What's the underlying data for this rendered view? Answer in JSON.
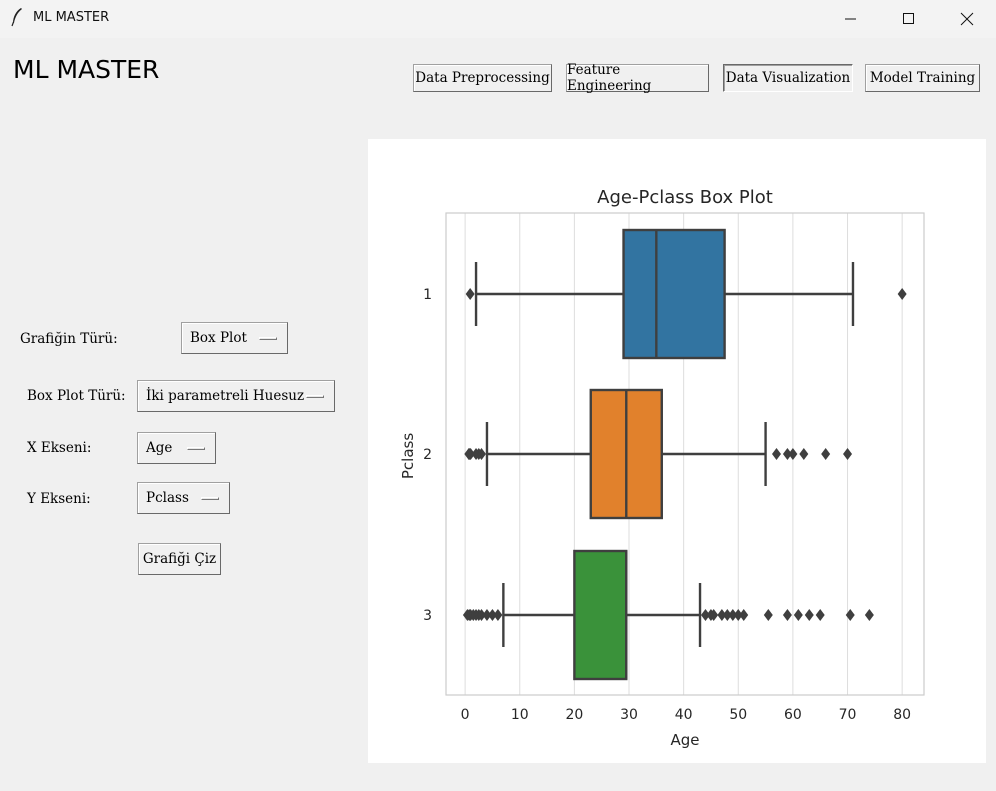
{
  "window": {
    "title": "ML MASTER"
  },
  "app": {
    "title": "ML MASTER"
  },
  "nav": {
    "data_preprocessing": "Data Preprocessing",
    "feature_engineering": "Feature Engineering",
    "data_visualization": "Data Visualization",
    "model_training": "Model Training"
  },
  "form": {
    "chart_type_label": "Grafiğin Türü:",
    "chart_type_value": "Box Plot",
    "boxplot_type_label": "Box Plot Türü:",
    "boxplot_type_value": "İki parametreli Huesuz",
    "x_axis_label": "X Ekseni:",
    "x_axis_value": "Age",
    "y_axis_label": "Y Ekseni:",
    "y_axis_value": "Pclass",
    "draw_button": "Grafiği Çiz"
  },
  "chart_data": {
    "type": "boxplot",
    "title": "Age-Pclass Box Plot",
    "xlabel": "Age",
    "ylabel": "Pclass",
    "xlim": [
      -3.5,
      84
    ],
    "xticks": [
      0,
      10,
      20,
      30,
      40,
      50,
      60,
      70,
      80
    ],
    "grid": "vertical",
    "categories": [
      "1",
      "2",
      "3"
    ],
    "boxes": [
      {
        "category": "1",
        "color": "#3274a1",
        "whisker_low": 0.92,
        "q1": 27,
        "median": 37,
        "q3": 49,
        "whisker_high": 80,
        "outliers": []
      },
      {
        "category": "2",
        "color": "#e1812c",
        "whisker_low": 0.67,
        "q1": 23,
        "median": 29,
        "q3": 36,
        "whisker_high": 70,
        "outliers": []
      },
      {
        "category": "3",
        "color": "#3a923a",
        "whisker_low": 0.42,
        "q1": 18,
        "median": 24,
        "q3": 32,
        "whisker_high": 74,
        "outliers": []
      }
    ],
    "rendered_boxes": [
      {
        "category": "1",
        "color": "#3274a1",
        "whisker_low": 2,
        "q1": 29,
        "median": 35,
        "q3": 47.5,
        "whisker_high": 71,
        "outliers": [
          0.92,
          80
        ]
      },
      {
        "category": "2",
        "color": "#e1812c",
        "whisker_low": 4,
        "q1": 23,
        "median": 29.5,
        "q3": 36,
        "whisker_high": 55,
        "outliers": [
          0.67,
          0.83,
          1,
          2,
          2.5,
          3,
          57,
          59,
          60,
          62,
          66,
          70
        ]
      },
      {
        "category": "3",
        "color": "#3a923a",
        "whisker_low": 7,
        "q1": 20,
        "median": 29.5,
        "q3": 29.5,
        "whisker_high": 43,
        "outliers": [
          0.42,
          0.75,
          1,
          1.5,
          2,
          2.5,
          3,
          4,
          5,
          6,
          44,
          45,
          45.5,
          47,
          48,
          49,
          50,
          51,
          55.5,
          59,
          61,
          63,
          65,
          70.5,
          74
        ]
      }
    ]
  }
}
